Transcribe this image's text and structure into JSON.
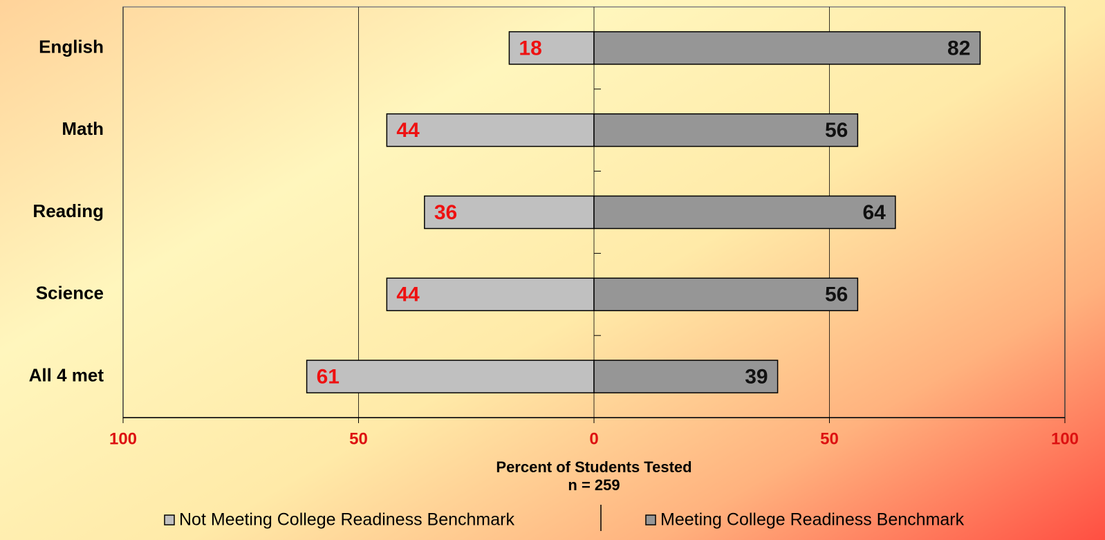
{
  "chart_data": {
    "type": "diverging_bar",
    "categories": [
      "English",
      "Math",
      "Reading",
      "Science",
      "All 4 met"
    ],
    "series": [
      {
        "name": "Not Meeting College Readiness Benchmark",
        "color": "#c0c0c0",
        "label_color": "#ee1111",
        "values": [
          -18,
          -44,
          -36,
          -44,
          -61
        ],
        "value_labels": [
          "18",
          "44",
          "36",
          "44",
          "61"
        ]
      },
      {
        "name": "Meeting College Readiness Benchmark",
        "color": "#969696",
        "label_color": "#111111",
        "values": [
          82,
          56,
          64,
          56,
          39
        ]
      }
    ],
    "xlim": [
      -100,
      100
    ],
    "xticks": [
      {
        "value": -100,
        "label": "100"
      },
      {
        "value": -50,
        "label": "50"
      },
      0,
      50,
      100
    ],
    "tick_label_color": "#dd1111",
    "xlabel": "Percent of Students Tested",
    "note": "n = 259",
    "grid": true,
    "legend": "bottom"
  }
}
